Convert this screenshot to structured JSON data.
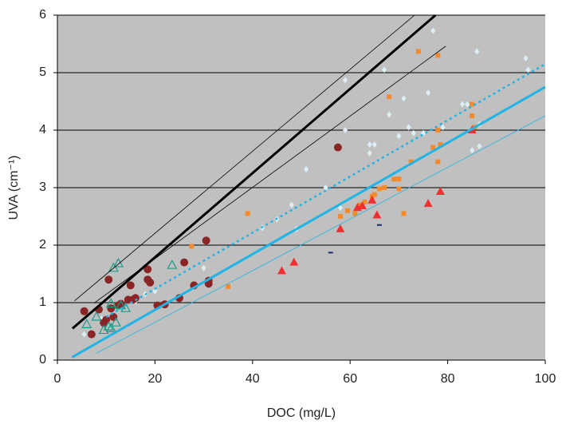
{
  "chart_data": {
    "type": "scatter",
    "x_label": "DOC (mg/L)",
    "y_label": "UVA (cm⁻¹)",
    "xlim": [
      0,
      100
    ],
    "xticks": [
      0,
      20,
      40,
      60,
      80,
      100
    ],
    "ylim": [
      0,
      6
    ],
    "yticks": [
      0,
      1,
      2,
      3,
      4,
      5,
      6
    ],
    "grid": true,
    "background": "#c0c0c0",
    "series": [
      {
        "type": "line",
        "color": "#000000",
        "width": 3,
        "dash": false,
        "x": [
          3.1,
          77.5
        ],
        "values": [
          0.55,
          6
        ]
      },
      {
        "type": "line",
        "color": "#000000",
        "width": 0.8,
        "dash": false,
        "x": [
          3.5,
          73.2
        ],
        "values": [
          1.03,
          6
        ]
      },
      {
        "type": "line",
        "color": "#000000",
        "width": 0.8,
        "dash": false,
        "x": [
          7.5,
          79.6
        ],
        "values": [
          0.99,
          5.46
        ]
      },
      {
        "type": "line",
        "color": "#1fb4e6",
        "width": 2.5,
        "dash": true,
        "x": [
          10,
          100
        ],
        "values": [
          0.75,
          5.15
        ]
      },
      {
        "type": "line",
        "color": "#1fb4e6",
        "width": 3,
        "dash": false,
        "x": [
          3,
          100
        ],
        "values": [
          0.05,
          4.75
        ]
      },
      {
        "type": "line",
        "color": "#1fb4e6",
        "width": 0.8,
        "dash": false,
        "x": [
          8,
          100
        ],
        "values": [
          0.12,
          4.25
        ]
      },
      {
        "type": "scatter",
        "marker": "diamond",
        "color": "#dceef6",
        "x": [
          9,
          16,
          18,
          20,
          48,
          49,
          51,
          55,
          58,
          59,
          59,
          64,
          64,
          65,
          67,
          68,
          70,
          71,
          72,
          73,
          75,
          76,
          77,
          79,
          83,
          84,
          85,
          86,
          86.5,
          86.5,
          96,
          96.5,
          42,
          45,
          5.5,
          13,
          30
        ],
        "values": [
          0.72,
          1.02,
          1.15,
          1.2,
          2.7,
          2.28,
          3.32,
          3,
          2.65,
          4,
          4.87,
          3.6,
          3.75,
          3.75,
          5.05,
          4.27,
          3.9,
          4.55,
          4.05,
          3.95,
          3.95,
          4.65,
          5.73,
          4.05,
          4.45,
          4.45,
          3.65,
          5.37,
          3.72,
          4.1,
          5.25,
          5.05,
          2.3,
          2.45,
          0.45,
          1,
          1.6
        ]
      },
      {
        "type": "scatter",
        "marker": "square",
        "color": "#f58a2c",
        "x": [
          27.5,
          35,
          39,
          58,
          59.5,
          61,
          62,
          63,
          64.5,
          65,
          66,
          67,
          68,
          69,
          70,
          70,
          71,
          72.5,
          74,
          77,
          78,
          78,
          78,
          78.5,
          85,
          85,
          85.5
        ],
        "values": [
          1.98,
          1.28,
          2.55,
          2.5,
          2.6,
          2.55,
          2.7,
          2.75,
          2.85,
          2.88,
          2.98,
          3,
          4.58,
          3.15,
          3.15,
          2.98,
          2.55,
          3.45,
          5.37,
          3.7,
          4,
          3.45,
          5.3,
          3.75,
          4.45,
          4.25,
          4.05
        ]
      },
      {
        "type": "scatter",
        "marker": "triangle",
        "color": "#f03030",
        "x": [
          46,
          48.5,
          58,
          61.5,
          62.5,
          64.5,
          65.5,
          76,
          78.5,
          85
        ],
        "values": [
          1.55,
          1.7,
          2.28,
          2.65,
          2.68,
          2.78,
          2.52,
          2.72,
          2.93,
          4
        ]
      },
      {
        "type": "scatter",
        "marker": "circle",
        "color": "#8b2525",
        "x": [
          5.5,
          7,
          8.5,
          9.5,
          10,
          10.5,
          11,
          11.5,
          12.5,
          13,
          14.5,
          15,
          15.5,
          16,
          18.5,
          18.5,
          19,
          20.5,
          22,
          25,
          26,
          28,
          30.5,
          31,
          31,
          57.5
        ],
        "values": [
          0.85,
          0.45,
          0.88,
          0.65,
          0.7,
          1.4,
          0.9,
          0.75,
          0.95,
          0.98,
          1.05,
          1.3,
          1.05,
          1.08,
          1.58,
          1.4,
          1.35,
          0.95,
          0.97,
          1.08,
          1.7,
          1.3,
          2.08,
          1.38,
          1.33,
          3.7
        ]
      },
      {
        "type": "scatter",
        "marker": "open-triangle",
        "color": "#1f9a8a",
        "x": [
          6,
          8,
          9.5,
          10.5,
          11,
          11.5,
          12,
          12.5,
          13,
          14,
          23.5,
          11
        ],
        "values": [
          0.62,
          0.75,
          0.52,
          0.58,
          0.98,
          1.6,
          0.65,
          1.68,
          0.95,
          0.9,
          1.65,
          0.55
        ]
      },
      {
        "type": "scatter",
        "marker": "dash",
        "color": "#1a2a6c",
        "x": [
          56,
          66
        ],
        "values": [
          1.87,
          2.35
        ]
      }
    ]
  }
}
